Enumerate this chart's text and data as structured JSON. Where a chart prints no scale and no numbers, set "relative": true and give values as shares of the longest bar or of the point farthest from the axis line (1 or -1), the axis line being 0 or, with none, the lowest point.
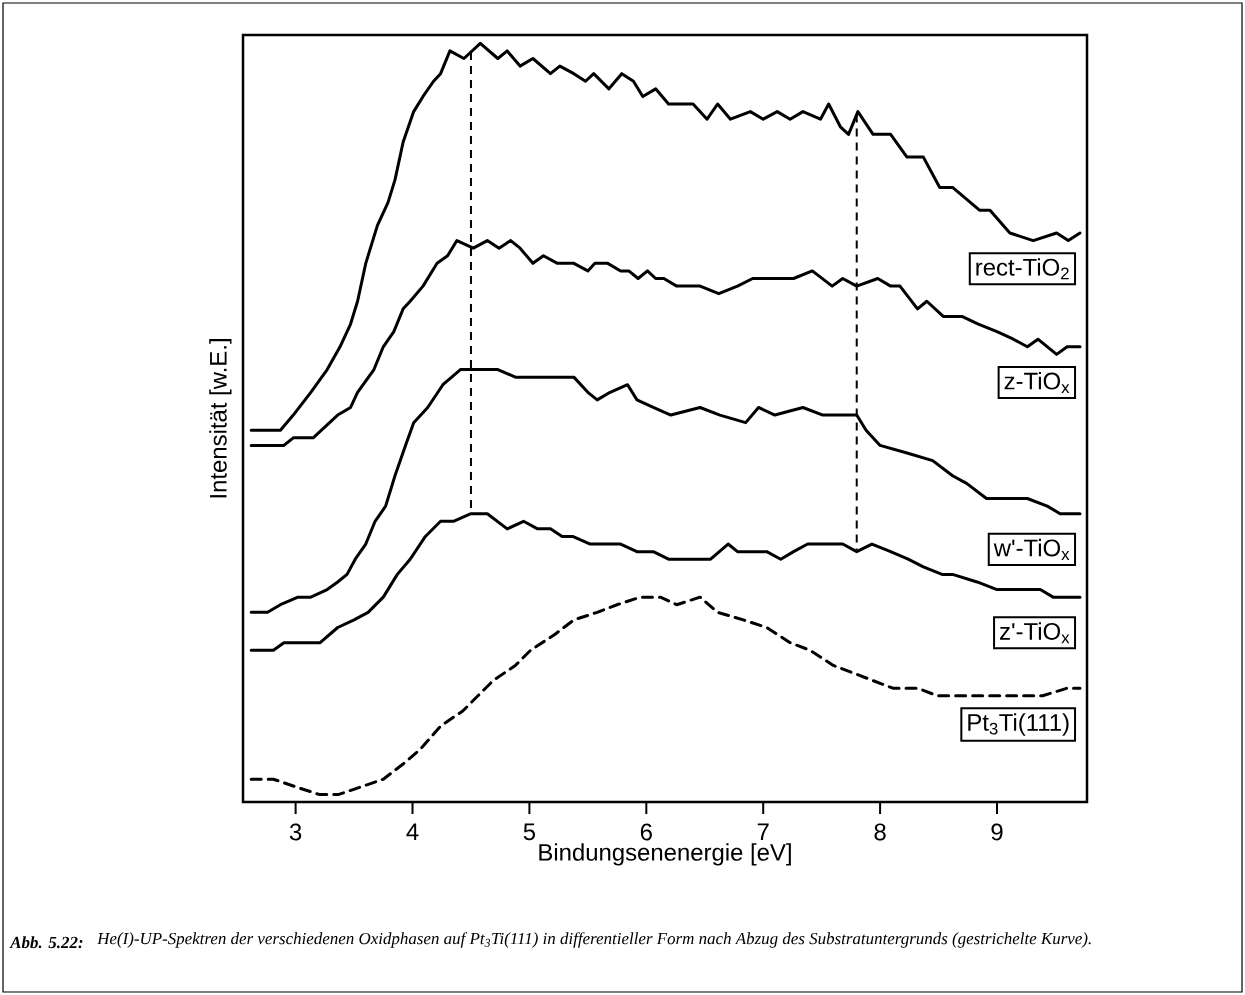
{
  "chart_data": {
    "type": "line",
    "relative": true,
    "tick_labels": "x",
    "xlabel": "Bindungsenenergie [eV]",
    "ylabel": "Intensität [w.E.]",
    "xlim": [
      2.55,
      9.77
    ],
    "xticks": [
      3,
      4,
      5,
      6,
      7,
      8,
      9
    ],
    "series": [
      {
        "name": "rect-TiO$_{2}$",
        "color": "#000000",
        "line_style": "solid",
        "x": [
          2.62,
          2.87,
          2.98,
          3.13,
          3.27,
          3.38,
          3.47,
          3.53,
          3.6,
          3.7,
          3.79,
          3.85,
          3.92,
          4.01,
          4.09,
          4.18,
          4.24,
          4.32,
          4.44,
          4.58,
          4.73,
          4.81,
          4.92,
          5.03,
          5.18,
          5.26,
          5.38,
          5.48,
          5.55,
          5.68,
          5.79,
          5.89,
          5.97,
          6.08,
          6.19,
          6.4,
          6.52,
          6.61,
          6.72,
          6.89,
          7.0,
          7.12,
          7.23,
          7.34,
          7.49,
          7.56,
          7.66,
          7.73,
          7.81,
          7.94,
          8.09,
          8.23,
          8.37,
          8.51,
          8.62,
          8.85,
          8.94,
          9.11,
          9.31,
          9.51,
          9.61,
          9.71
        ],
        "values": [
          0.49,
          0.49,
          0.51,
          0.54,
          0.57,
          0.6,
          0.63,
          0.66,
          0.71,
          0.76,
          0.79,
          0.82,
          0.87,
          0.91,
          0.93,
          0.95,
          0.96,
          0.99,
          0.98,
          1.0,
          0.98,
          0.99,
          0.97,
          0.98,
          0.96,
          0.97,
          0.96,
          0.95,
          0.96,
          0.94,
          0.96,
          0.95,
          0.93,
          0.94,
          0.92,
          0.92,
          0.9,
          0.92,
          0.9,
          0.91,
          0.9,
          0.91,
          0.9,
          0.91,
          0.9,
          0.92,
          0.89,
          0.88,
          0.91,
          0.88,
          0.88,
          0.85,
          0.85,
          0.81,
          0.81,
          0.78,
          0.78,
          0.75,
          0.74,
          0.75,
          0.74,
          0.75
        ]
      },
      {
        "name": "z-TiO$_{x}$",
        "color": "#000000",
        "line_style": "solid",
        "x": [
          2.62,
          2.9,
          2.98,
          3.15,
          3.36,
          3.47,
          3.53,
          3.67,
          3.75,
          3.84,
          3.92,
          3.98,
          4.09,
          4.21,
          4.3,
          4.38,
          4.52,
          4.64,
          4.74,
          4.84,
          4.92,
          5.03,
          5.12,
          5.24,
          5.38,
          5.5,
          5.56,
          5.67,
          5.78,
          5.85,
          5.93,
          6.01,
          6.08,
          6.15,
          6.26,
          6.46,
          6.62,
          6.78,
          6.91,
          7.12,
          7.26,
          7.42,
          7.59,
          7.68,
          7.8,
          7.98,
          8.09,
          8.17,
          8.32,
          8.4,
          8.54,
          8.7,
          8.84,
          9.0,
          9.14,
          9.26,
          9.35,
          9.51,
          9.6,
          9.71
        ],
        "values": [
          0.47,
          0.47,
          0.48,
          0.48,
          0.51,
          0.52,
          0.54,
          0.57,
          0.6,
          0.62,
          0.65,
          0.66,
          0.68,
          0.71,
          0.72,
          0.74,
          0.73,
          0.74,
          0.73,
          0.74,
          0.73,
          0.71,
          0.72,
          0.71,
          0.71,
          0.7,
          0.71,
          0.71,
          0.7,
          0.7,
          0.69,
          0.7,
          0.69,
          0.69,
          0.68,
          0.68,
          0.67,
          0.68,
          0.69,
          0.69,
          0.69,
          0.7,
          0.68,
          0.69,
          0.68,
          0.69,
          0.68,
          0.68,
          0.65,
          0.66,
          0.64,
          0.64,
          0.63,
          0.62,
          0.61,
          0.6,
          0.61,
          0.59,
          0.6,
          0.6
        ]
      },
      {
        "name": "w'-TiO$_{x}$",
        "color": "#000000",
        "line_style": "solid",
        "x": [
          2.62,
          2.76,
          2.87,
          3.02,
          3.13,
          3.27,
          3.36,
          3.44,
          3.51,
          3.6,
          3.68,
          3.77,
          3.85,
          3.94,
          4.01,
          4.13,
          4.26,
          4.41,
          4.5,
          4.58,
          4.73,
          4.88,
          5.03,
          5.18,
          5.29,
          5.38,
          5.5,
          5.58,
          5.69,
          5.84,
          5.92,
          6.06,
          6.21,
          6.46,
          6.63,
          6.85,
          6.96,
          7.1,
          7.34,
          7.51,
          7.68,
          7.8,
          7.88,
          8.0,
          8.23,
          8.45,
          8.62,
          8.74,
          8.91,
          9.03,
          9.26,
          9.43,
          9.54,
          9.71
        ],
        "values": [
          0.25,
          0.25,
          0.26,
          0.27,
          0.27,
          0.28,
          0.29,
          0.3,
          0.32,
          0.34,
          0.37,
          0.39,
          0.43,
          0.47,
          0.5,
          0.52,
          0.55,
          0.57,
          0.57,
          0.57,
          0.57,
          0.56,
          0.56,
          0.56,
          0.56,
          0.56,
          0.54,
          0.53,
          0.54,
          0.55,
          0.53,
          0.52,
          0.51,
          0.52,
          0.51,
          0.5,
          0.52,
          0.51,
          0.52,
          0.51,
          0.51,
          0.51,
          0.49,
          0.47,
          0.46,
          0.45,
          0.43,
          0.42,
          0.4,
          0.4,
          0.4,
          0.39,
          0.38,
          0.38
        ]
      },
      {
        "name": "z'-TiO$_{x}$",
        "color": "#000000",
        "line_style": "solid",
        "x": [
          2.62,
          2.73,
          2.81,
          2.9,
          3.04,
          3.21,
          3.36,
          3.5,
          3.62,
          3.75,
          3.87,
          3.98,
          4.11,
          4.24,
          4.35,
          4.5,
          4.64,
          4.81,
          4.95,
          5.07,
          5.18,
          5.28,
          5.37,
          5.52,
          5.63,
          5.78,
          5.92,
          6.06,
          6.19,
          6.39,
          6.55,
          6.7,
          6.78,
          7.03,
          7.15,
          7.26,
          7.38,
          7.55,
          7.68,
          7.8,
          7.93,
          8.09,
          8.24,
          8.37,
          8.53,
          8.62,
          8.83,
          9.0,
          9.11,
          9.26,
          9.37,
          9.48,
          9.6,
          9.71
        ],
        "values": [
          0.2,
          0.2,
          0.2,
          0.21,
          0.21,
          0.21,
          0.23,
          0.24,
          0.25,
          0.27,
          0.3,
          0.32,
          0.35,
          0.37,
          0.37,
          0.38,
          0.38,
          0.36,
          0.37,
          0.36,
          0.36,
          0.35,
          0.35,
          0.34,
          0.34,
          0.34,
          0.33,
          0.33,
          0.32,
          0.32,
          0.32,
          0.34,
          0.33,
          0.33,
          0.32,
          0.33,
          0.34,
          0.34,
          0.34,
          0.33,
          0.34,
          0.33,
          0.32,
          0.31,
          0.3,
          0.3,
          0.29,
          0.28,
          0.28,
          0.28,
          0.28,
          0.27,
          0.27,
          0.27
        ]
      },
      {
        "name": "Pt$_{3}$Ti(111)",
        "color": "#000000",
        "line_style": "dashed",
        "x": [
          2.62,
          2.81,
          3.0,
          3.2,
          3.37,
          3.56,
          3.75,
          3.92,
          4.07,
          4.24,
          4.43,
          4.56,
          4.69,
          4.88,
          5.01,
          5.21,
          5.38,
          5.58,
          5.75,
          5.95,
          6.12,
          6.26,
          6.46,
          6.61,
          6.83,
          7.03,
          7.23,
          7.4,
          7.6,
          7.77,
          7.94,
          8.11,
          8.32,
          8.49,
          8.68,
          8.85,
          9.05,
          9.22,
          9.39,
          9.6,
          9.71
        ],
        "values": [
          0.03,
          0.03,
          0.02,
          0.01,
          0.01,
          0.02,
          0.03,
          0.05,
          0.07,
          0.1,
          0.12,
          0.14,
          0.16,
          0.18,
          0.2,
          0.22,
          0.24,
          0.25,
          0.26,
          0.27,
          0.27,
          0.26,
          0.27,
          0.25,
          0.24,
          0.23,
          0.21,
          0.2,
          0.18,
          0.17,
          0.16,
          0.15,
          0.15,
          0.14,
          0.14,
          0.14,
          0.14,
          0.14,
          0.14,
          0.15,
          0.15
        ]
      }
    ],
    "ref_lines": [
      {
        "axis": "x",
        "value": 4.5,
        "line_style": "dashed"
      },
      {
        "axis": "x",
        "value": 7.8,
        "line_style": "dashed"
      }
    ],
    "annotations": [
      "Abb. 5.22:",
      "He(I)-UP-Spektren der verschiedenen Oxidphasen auf Pt$_{3}$Ti(111) in differentieller Form nach Abzug des Substratuntergrunds (gestrichelte Kurve)."
    ]
  }
}
